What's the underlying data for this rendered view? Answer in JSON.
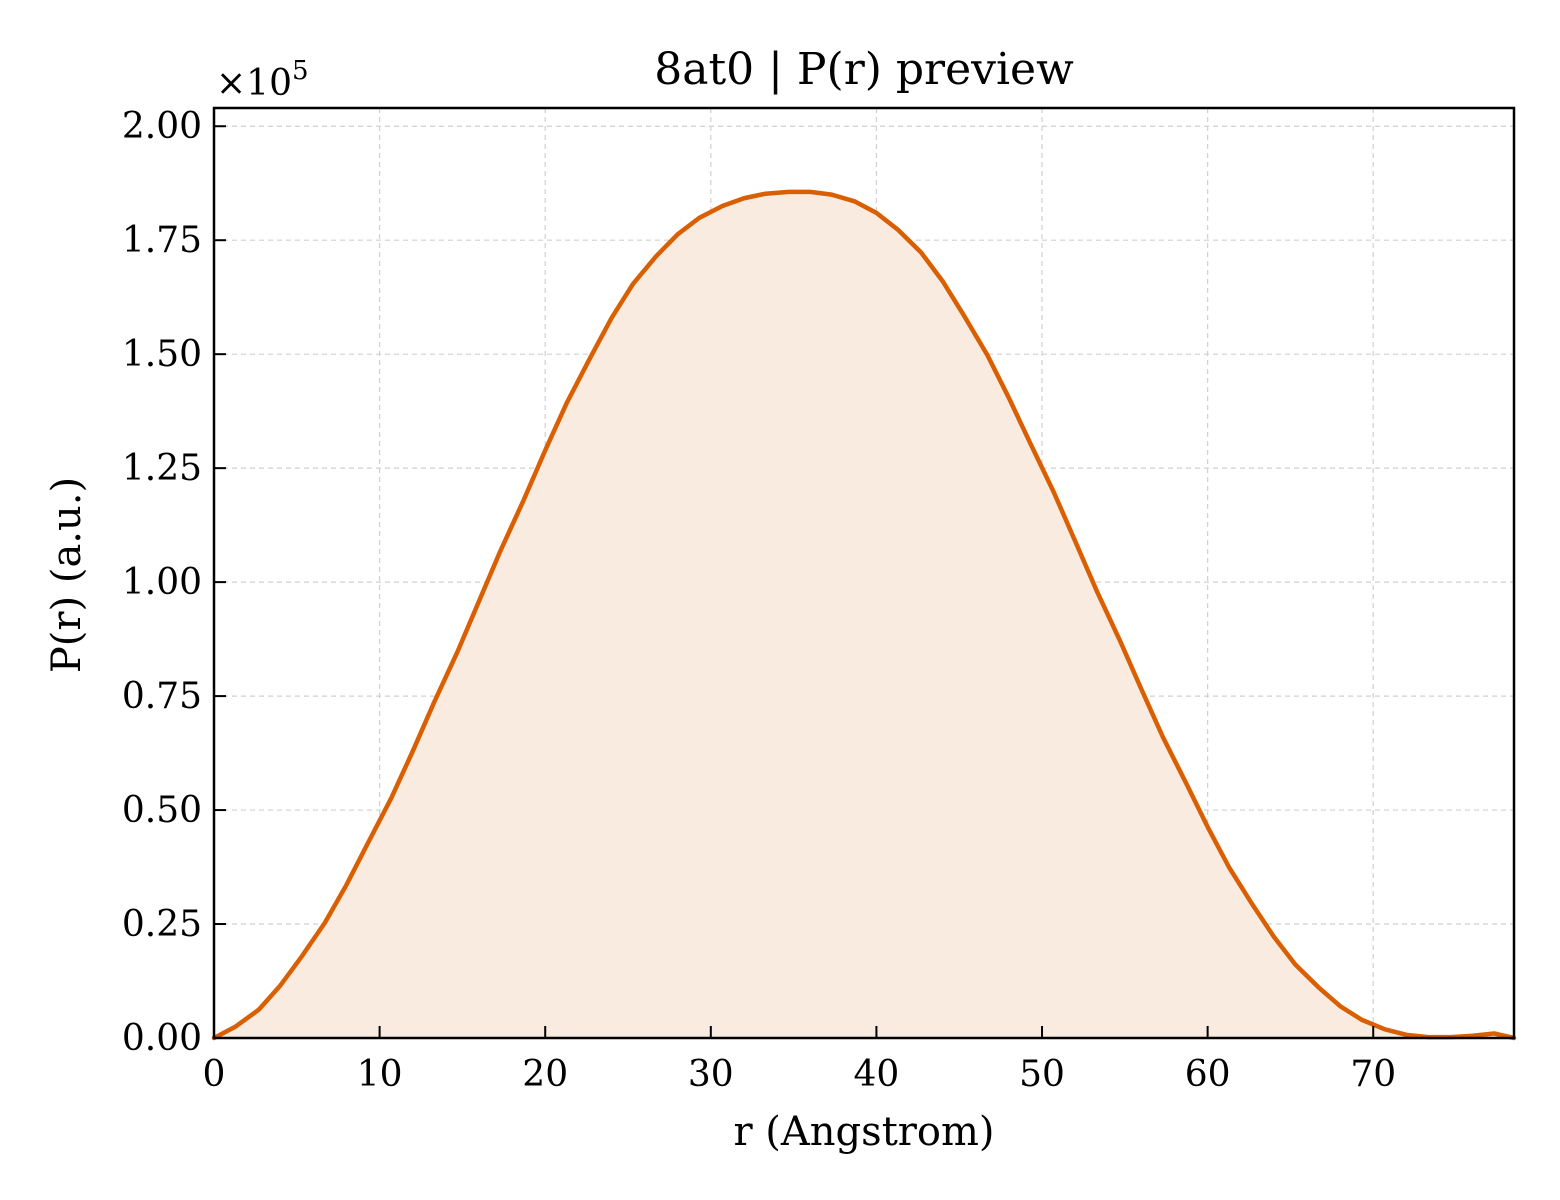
{
  "chart_data": {
    "type": "area",
    "title": "8at0 | P(r) preview",
    "xlabel": "r (Angstrom)",
    "ylabel": "P(r) (a.u.)",
    "y_multiplier_label": "×10",
    "y_multiplier_exponent": "5",
    "xlim": [
      0,
      78.5
    ],
    "ylim": [
      0,
      204000
    ],
    "x_ticks": [
      0,
      10,
      20,
      30,
      40,
      50,
      60,
      70
    ],
    "x_tick_labels": [
      "0",
      "10",
      "20",
      "30",
      "40",
      "50",
      "60",
      "70"
    ],
    "y_ticks": [
      0,
      25000,
      50000,
      75000,
      100000,
      125000,
      150000,
      175000,
      200000
    ],
    "y_tick_labels": [
      "0.00",
      "0.25",
      "0.50",
      "0.75",
      "1.00",
      "1.25",
      "1.50",
      "1.75",
      "2.00"
    ],
    "grid": true,
    "line_color": "#d95f02",
    "fill_color": "#f9ebe0",
    "series": [
      {
        "x": [
          0,
          1.3,
          2.7,
          4.0,
          5.3,
          6.7,
          8.0,
          9.3,
          10.7,
          12.0,
          13.3,
          14.7,
          16.0,
          17.3,
          18.7,
          20.0,
          21.3,
          22.7,
          24.0,
          25.3,
          26.7,
          28.0,
          29.3,
          30.7,
          32.0,
          33.3,
          34.7,
          36.0,
          37.3,
          38.7,
          40.0,
          41.3,
          42.7,
          44.0,
          45.3,
          46.7,
          48.0,
          49.3,
          50.7,
          52.0,
          53.3,
          54.7,
          56.0,
          57.3,
          58.7,
          60.0,
          61.3,
          62.7,
          64.0,
          65.3,
          66.7,
          68.0,
          69.3,
          70.7,
          72.0,
          73.3,
          74.7,
          76.0,
          77.3,
          78.5
        ],
        "y": [
          0,
          2500,
          6200,
          11500,
          17900,
          25300,
          33600,
          42800,
          52600,
          62900,
          73700,
          84700,
          95800,
          106900,
          118000,
          128900,
          139300,
          149100,
          157900,
          165400,
          171500,
          176300,
          179900,
          182500,
          184200,
          185200,
          185600,
          185600,
          185000,
          183500,
          181000,
          177300,
          172300,
          166000,
          158400,
          149800,
          140400,
          130400,
          119800,
          109000,
          98100,
          87200,
          76500,
          66000,
          55900,
          46300,
          37400,
          29300,
          22200,
          16100,
          11100,
          7000,
          4000,
          1900,
          700,
          200,
          200,
          500,
          1000,
          0
        ]
      }
    ]
  }
}
